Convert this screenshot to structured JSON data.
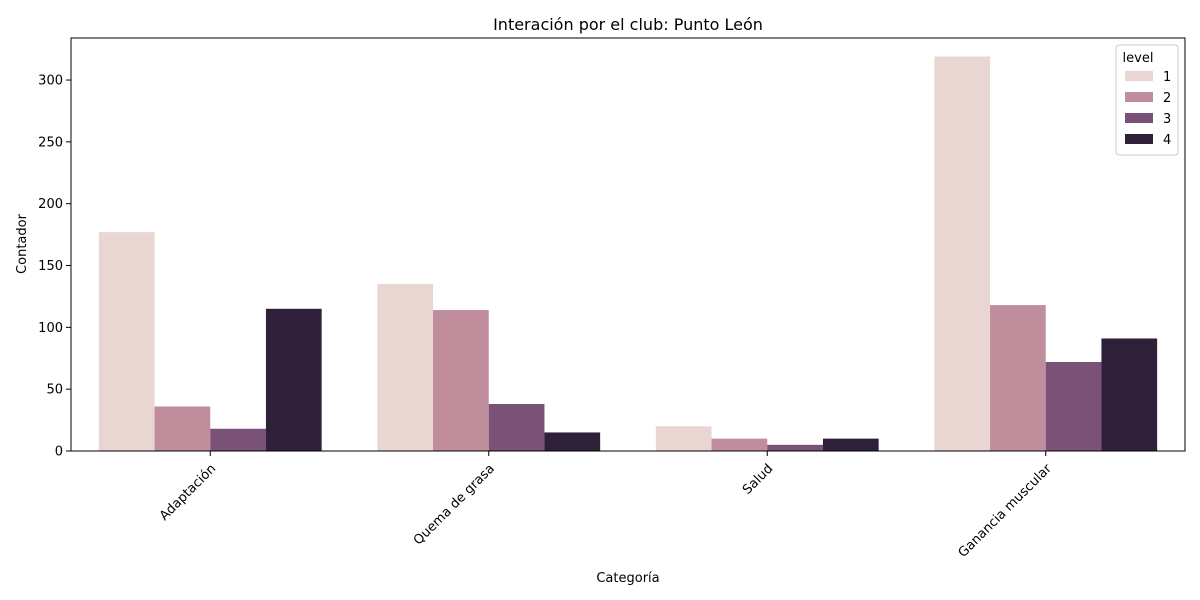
{
  "chart_data": {
    "type": "bar",
    "title": "Interación por el club: Punto León",
    "xlabel": "Categoría",
    "ylabel": "Contador",
    "categories": [
      "Adaptación",
      "Quema de grasa",
      "Salud",
      "Ganancia muscular"
    ],
    "series": [
      {
        "name": "1",
        "color": "#e9d5d1",
        "values": [
          177,
          135,
          20,
          319
        ]
      },
      {
        "name": "2",
        "color": "#c08d9d",
        "values": [
          36,
          114,
          10,
          118
        ]
      },
      {
        "name": "3",
        "color": "#7b5277",
        "values": [
          18,
          38,
          5,
          72
        ]
      },
      {
        "name": "4",
        "color": "#2e2039",
        "values": [
          115,
          15,
          10,
          91
        ]
      }
    ],
    "ylim": [
      0,
      334
    ],
    "yticks": [
      0,
      50,
      100,
      150,
      200,
      250,
      300
    ],
    "grid": false,
    "legend": {
      "title": "level",
      "placement": "top-right"
    }
  }
}
